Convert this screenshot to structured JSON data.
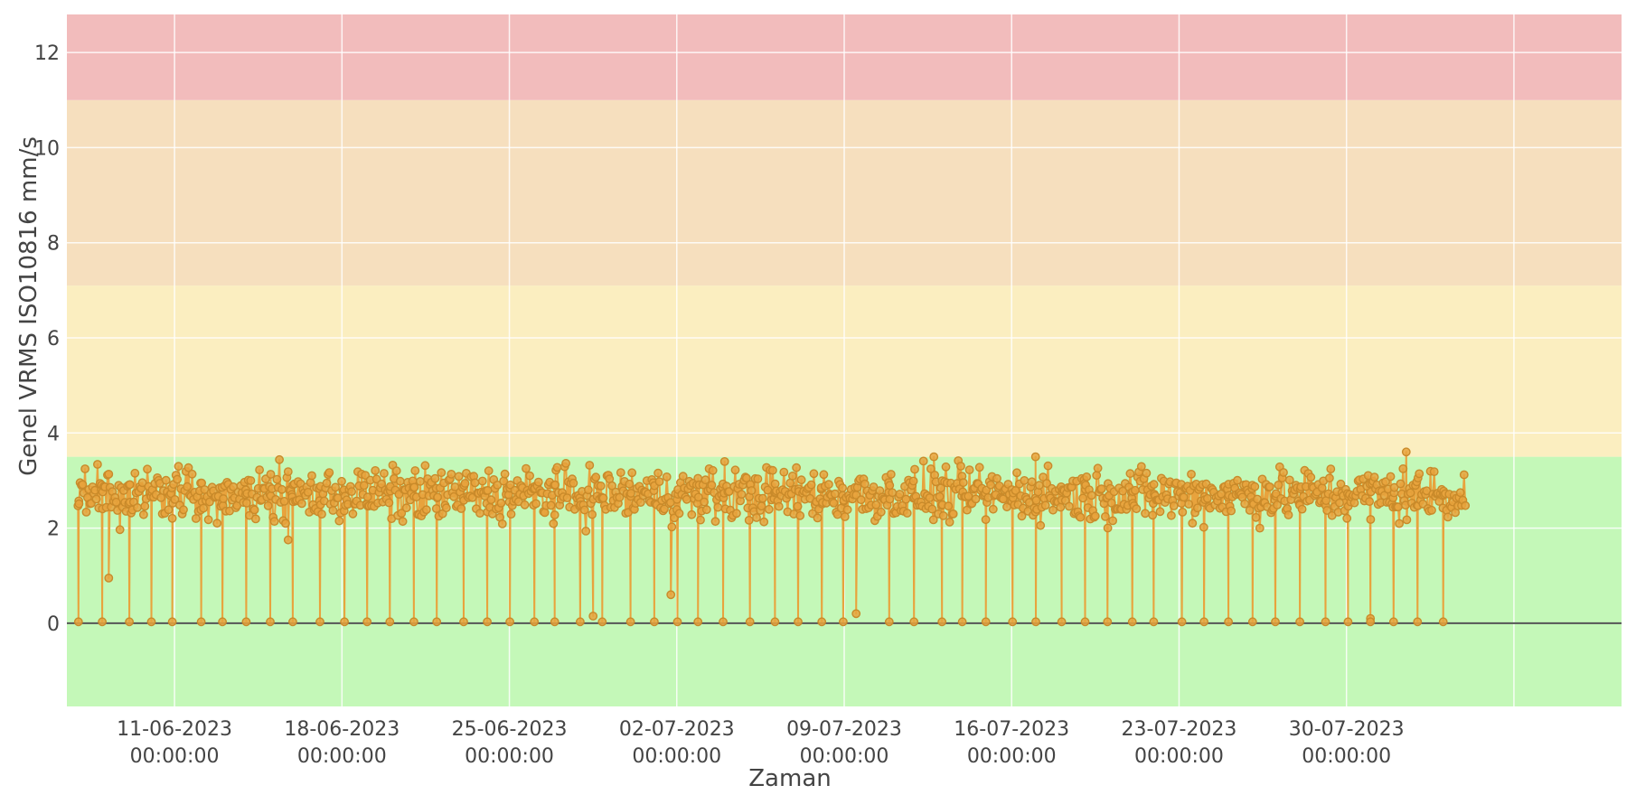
{
  "chart_data": {
    "type": "line",
    "title": "",
    "xlabel": "Zaman",
    "ylabel": "Genel VRMS ISO10816 mm/s",
    "x_range": [
      "2023-06-06T12:00:00",
      "2023-08-10T12:00:00"
    ],
    "x_ticks": [
      {
        "date": "2023-06-11",
        "line1": "11-06-2023",
        "line2": "00:00:00"
      },
      {
        "date": "2023-06-18",
        "line1": "18-06-2023",
        "line2": "00:00:00"
      },
      {
        "date": "2023-06-25",
        "line1": "25-06-2023",
        "line2": "00:00:00"
      },
      {
        "date": "2023-07-02",
        "line1": "02-07-2023",
        "line2": "00:00:00"
      },
      {
        "date": "2023-07-09",
        "line1": "09-07-2023",
        "line2": "00:00:00"
      },
      {
        "date": "2023-07-16",
        "line1": "16-07-2023",
        "line2": "00:00:00"
      },
      {
        "date": "2023-07-23",
        "line1": "23-07-2023",
        "line2": "00:00:00"
      },
      {
        "date": "2023-07-30",
        "line1": "30-07-2023",
        "line2": "00:00:00"
      }
    ],
    "ylim": [
      -1.75,
      12.8
    ],
    "y_ticks": [
      0,
      2,
      4,
      6,
      8,
      10,
      12
    ],
    "grid": true,
    "legend": "none",
    "zones": [
      {
        "from": -1.75,
        "to": 3.5,
        "color": "#c4f8b8"
      },
      {
        "from": 3.5,
        "to": 7.1,
        "color": "#fbeec0"
      },
      {
        "from": 7.1,
        "to": 11.0,
        "color": "#f6dfbe"
      },
      {
        "from": 11.0,
        "to": 12.8,
        "color": "#f2bcbc"
      }
    ],
    "series": [
      {
        "color": "#e8a33d",
        "marker_edge": "#c98a2a",
        "x_start": "2023-06-07",
        "x_end": "2023-08-04",
        "baseline": 2.7,
        "band_min": 1.9,
        "band_max": 3.6,
        "drop_value": 0.03,
        "drop_dates": [
          "2023-06-07",
          "2023-06-08",
          "2023-06-09",
          "2023-06-10",
          "2023-06-11",
          "2023-06-12",
          "2023-06-13",
          "2023-06-14",
          "2023-06-15",
          "2023-06-16",
          "2023-06-17",
          "2023-06-18",
          "2023-06-19",
          "2023-06-20",
          "2023-06-21",
          "2023-06-22",
          "2023-06-23",
          "2023-06-24",
          "2023-06-25",
          "2023-06-26",
          "2023-06-27",
          "2023-06-28",
          "2023-06-29",
          "2023-06-30",
          "2023-07-01",
          "2023-07-02",
          "2023-07-03",
          "2023-07-04",
          "2023-07-05",
          "2023-07-06",
          "2023-07-07",
          "2023-07-08",
          "2023-07-09",
          "2023-07-11",
          "2023-07-12",
          "2023-07-13",
          "2023-07-14",
          "2023-07-15",
          "2023-07-16",
          "2023-07-17",
          "2023-07-18",
          "2023-07-19",
          "2023-07-20",
          "2023-07-21",
          "2023-07-22",
          "2023-07-23",
          "2023-07-24",
          "2023-07-25",
          "2023-07-26",
          "2023-07-27",
          "2023-07-28",
          "2023-07-29",
          "2023-07-30",
          "2023-07-31",
          "2023-08-01",
          "2023-08-02",
          "2023-08-03"
        ],
        "notable_points": [
          {
            "date": "2023-06-08 06:00",
            "y": 0.95
          },
          {
            "date": "2023-06-15 18:00",
            "y": 1.75
          },
          {
            "date": "2023-06-28 12:00",
            "y": 0.15
          },
          {
            "date": "2023-07-01 18:00",
            "y": 0.6
          },
          {
            "date": "2023-07-04 00:00",
            "y": 3.4
          },
          {
            "date": "2023-07-09 12:00",
            "y": 0.2
          },
          {
            "date": "2023-07-12 18:00",
            "y": 3.5
          },
          {
            "date": "2023-07-17 00:00",
            "y": 3.5
          },
          {
            "date": "2023-08-01 12:00",
            "y": 3.6
          },
          {
            "date": "2023-07-31 00:00",
            "y": 0.1
          }
        ]
      }
    ]
  }
}
